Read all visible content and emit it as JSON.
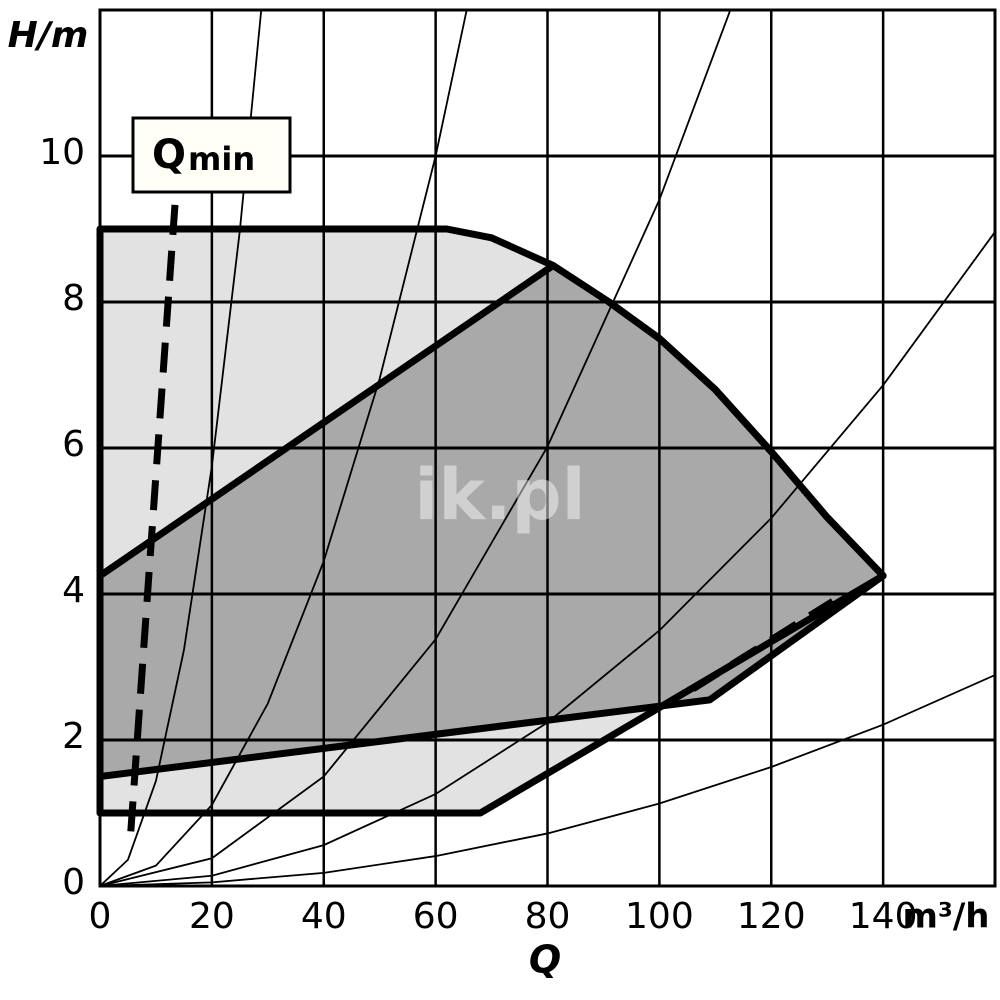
{
  "chart_data": {
    "type": "line",
    "y_label": "H/m",
    "x_label": "Q",
    "x_unit": "m³/h",
    "watermark": "ik.pl",
    "annotation": {
      "text": "Q",
      "subscript": "min"
    },
    "xlim": [
      0,
      160
    ],
    "ylim": [
      0,
      12
    ],
    "xticks": [
      0,
      20,
      40,
      60,
      80,
      100,
      120,
      140
    ],
    "xgrid": [
      0,
      20,
      40,
      60,
      80,
      100,
      120,
      140,
      160
    ],
    "yticks": [
      0,
      2,
      4,
      6,
      8,
      10
    ],
    "grid": true,
    "regions": [
      {
        "color": "#e2e2e2",
        "x": [
          0,
          62,
          70,
          81,
          91,
          100,
          110,
          120,
          130,
          140,
          68,
          0
        ],
        "values": [
          9,
          9,
          8.88,
          8.5,
          8.0,
          7.5,
          6.8,
          5.95,
          5.05,
          4.25,
          1,
          1
        ]
      },
      {
        "color": "#a9a9a9",
        "x": [
          0,
          81,
          91,
          100,
          110,
          120,
          130,
          140,
          109,
          0
        ],
        "values": [
          4.25,
          8.5,
          8.0,
          7.5,
          6.8,
          5.95,
          5.05,
          4.25,
          2.55,
          1.5
        ]
      }
    ],
    "system_curves": [
      {
        "x": [
          0,
          5,
          10,
          15,
          20,
          25,
          30
        ],
        "values": [
          0,
          0.36,
          1.44,
          3.23,
          5.75,
          8.98,
          12.93
        ]
      },
      {
        "x": [
          0,
          10,
          20,
          30,
          40,
          50,
          60,
          70
        ],
        "values": [
          0,
          0.28,
          1.11,
          2.5,
          4.45,
          6.95,
          10.0,
          13.6
        ]
      },
      {
        "x": [
          0,
          20,
          40,
          60,
          80,
          100,
          120
        ],
        "values": [
          0,
          0.38,
          1.5,
          3.38,
          6.02,
          9.4,
          13.5
        ]
      },
      {
        "x": [
          0,
          20,
          40,
          60,
          80,
          100,
          120,
          140,
          160
        ],
        "values": [
          0,
          0.14,
          0.56,
          1.26,
          2.24,
          3.5,
          5.04,
          6.86,
          8.96
        ]
      },
      {
        "x": [
          0,
          20,
          40,
          60,
          80,
          100,
          120,
          140,
          160
        ],
        "values": [
          0,
          0.05,
          0.18,
          0.41,
          0.72,
          1.13,
          1.63,
          2.21,
          2.89
        ]
      }
    ],
    "dashed_lines": [
      {
        "x": [
          13.4,
          5.4
        ],
        "values": [
          9.33,
          0.63
        ]
      },
      {
        "x": [
          106,
          131
        ],
        "values": [
          2.7,
          3.9
        ]
      }
    ]
  }
}
